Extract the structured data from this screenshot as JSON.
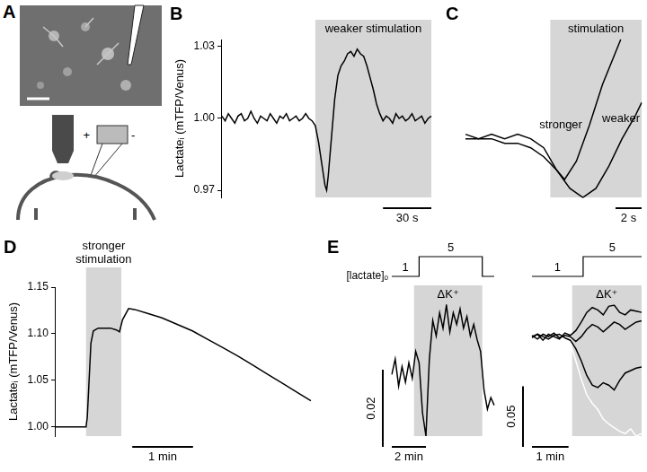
{
  "panel_A": {
    "label": "A",
    "polarity": [
      "+",
      "-"
    ]
  },
  "chart_data": [
    {
      "panel": "B",
      "type": "line",
      "y_label": "Lactateᵢ (mTFP/Venus)",
      "tick_labels": "y",
      "ylim": [
        0.967,
        1.033
      ],
      "yticks": [
        0.97,
        {
          "value": 1,
          "label": "1.00"
        },
        1.03
      ],
      "shade": {
        "label": "weaker stimulation",
        "x": [
          58,
          130
        ]
      },
      "scale_bar": {
        "x": 30,
        "x_label": "30 s"
      },
      "series": [
        {
          "color": "#000000",
          "x": [
            0,
            2,
            4,
            6,
            8,
            10,
            12,
            14,
            16,
            18,
            20,
            22,
            24,
            26,
            28,
            30,
            32,
            34,
            36,
            38,
            40,
            42,
            44,
            46,
            48,
            50,
            52,
            54,
            56,
            58,
            60,
            62,
            64,
            65,
            66,
            68,
            70,
            72,
            74,
            76,
            78,
            80,
            82,
            84,
            86,
            88,
            90,
            92,
            94,
            96,
            98,
            100,
            102,
            104,
            106,
            108,
            110,
            112,
            114,
            116,
            118,
            120,
            122,
            124,
            126,
            128,
            130
          ],
          "values": [
            1.001,
            0.999,
            1.002,
            1.0,
            0.998,
            1.001,
            1.002,
            0.999,
            1.0,
            1.003,
            1.0,
            0.998,
            1.001,
            1.0,
            0.999,
            1.002,
            1.0,
            0.998,
            1.001,
            1.0,
            1.002,
            0.999,
            1.0,
            1.001,
            0.999,
            1.0,
            1.002,
            1.0,
            0.999,
            0.997,
            0.99,
            0.981,
            0.972,
            0.97,
            0.976,
            0.992,
            1.008,
            1.018,
            1.022,
            1.024,
            1.027,
            1.028,
            1.026,
            1.029,
            1.027,
            1.026,
            1.022,
            1.017,
            1.012,
            1.006,
            1.002,
            0.999,
            1.001,
            1.0,
            0.998,
            1.002,
            1.0,
            1.001,
            0.999,
            1.0,
            1.002,
            0.999,
            1.0,
            1.001,
            0.998,
            1.0,
            1.001
          ]
        }
      ]
    },
    {
      "panel": "C",
      "type": "line",
      "tick_labels": false,
      "shade": {
        "label": "stimulation",
        "x": [
          6.5,
          13.5
        ]
      },
      "scale_bar": {
        "x": 2,
        "x_label": "2 s"
      },
      "series": [
        {
          "name": "stronger",
          "color": "#000000",
          "x": [
            0,
            1,
            2,
            3,
            4,
            5,
            6,
            7,
            7.6,
            8.5,
            9.5,
            10.5,
            11.9
          ],
          "values": [
            1.003,
            1.002,
            1.003,
            1.002,
            1.003,
            1.002,
            1.0,
            0.995,
            0.993,
            0.997,
            1.005,
            1.014,
            1.024
          ]
        },
        {
          "name": "weaker",
          "color": "#000000",
          "x": [
            0,
            1,
            2,
            3,
            4,
            5,
            6,
            7,
            8,
            9,
            10,
            11,
            12,
            13,
            13.5
          ],
          "values": [
            1.002,
            1.002,
            1.002,
            1.001,
            1.001,
            1.0,
            0.998,
            0.995,
            0.991,
            0.989,
            0.991,
            0.996,
            1.002,
            1.007,
            1.01
          ]
        }
      ]
    },
    {
      "panel": "D",
      "type": "line",
      "y_label": "Lactateᵢ (mTFP/Venus)",
      "tick_labels": "y",
      "ylim": [
        0.99,
        1.15
      ],
      "yticks": [
        {
          "value": 1,
          "label": "1.00"
        },
        1.05,
        {
          "value": 1.1,
          "label": "1.10"
        },
        1.15
      ],
      "shade": {
        "label": "stronger stimulation",
        "x": [
          0.5,
          1.08
        ]
      },
      "scale_bar": {
        "x": 1,
        "x_label": "1 min"
      },
      "series": [
        {
          "color": "#000000",
          "x": [
            0,
            0.2,
            0.4,
            0.5,
            0.52,
            0.55,
            0.58,
            0.62,
            0.7,
            0.8,
            0.9,
            1.0,
            1.05,
            1.1,
            1.2,
            1.3,
            1.5,
            1.75,
            2.0,
            2.25,
            2.5,
            2.75,
            3.0,
            3.25,
            3.5,
            3.75,
            4.0,
            4.2
          ],
          "values": [
            1.0,
            1.0,
            1.0,
            1.0,
            1.01,
            1.05,
            1.09,
            1.103,
            1.106,
            1.106,
            1.106,
            1.104,
            1.102,
            1.115,
            1.127,
            1.126,
            1.122,
            1.117,
            1.11,
            1.103,
            1.094,
            1.085,
            1.076,
            1.066,
            1.056,
            1.046,
            1.036,
            1.028
          ]
        }
      ]
    },
    {
      "panel": "E",
      "type": "line",
      "tick_labels": false,
      "shade": {
        "label": "ΔK⁺",
        "x": [
          1.3,
          5.3
        ]
      },
      "scale_bar": {
        "x": 2,
        "x_label": "2 min",
        "y": 0.02,
        "y_label": "0.02"
      },
      "lactate_o": {
        "label": "[lactate]ₒ",
        "x": [
          0,
          1.6,
          5.3
        ],
        "levels": [
          1,
          5,
          1
        ]
      },
      "series": [
        {
          "color": "#000000",
          "x": [
            0,
            0.2,
            0.4,
            0.6,
            0.8,
            1.0,
            1.2,
            1.4,
            1.6,
            1.8,
            2.0,
            2.2,
            2.4,
            2.6,
            2.8,
            3.0,
            3.2,
            3.4,
            3.6,
            3.8,
            4.0,
            4.2,
            4.4,
            4.6,
            4.8,
            5.0,
            5.2,
            5.4,
            5.6,
            5.8,
            6.0
          ],
          "values": [
            0,
            0.004,
            -0.003,
            0.002,
            -0.002,
            0.003,
            -0.001,
            0.006,
            0.003,
            -0.01,
            -0.016,
            0.004,
            0.014,
            0.01,
            0.016,
            0.012,
            0.018,
            0.011,
            0.016,
            0.013,
            0.017,
            0.012,
            0.015,
            0.01,
            0.013,
            0.009,
            0.006,
            -0.004,
            -0.009,
            -0.006,
            -0.008
          ]
        }
      ]
    },
    {
      "type": "line",
      "tick_labels": false,
      "shade": {
        "label": "ΔK⁺",
        "x": [
          1.1,
          3.0
        ]
      },
      "scale_bar": {
        "x": 1,
        "x_label": "1 min",
        "y": 0.05,
        "y_label": "0.05"
      },
      "lactate_o": {
        "x": [
          0,
          1.4
        ],
        "levels": [
          1,
          5
        ]
      },
      "series": [
        {
          "color": "#000000",
          "x": [
            0,
            0.15,
            0.3,
            0.45,
            0.6,
            0.75,
            0.9,
            1.05,
            1.2,
            1.35,
            1.5,
            1.65,
            1.8,
            1.95,
            2.1,
            2.25,
            2.4,
            2.55,
            2.7,
            2.85,
            3.0
          ],
          "values": [
            0,
            0.002,
            -0.003,
            0.002,
            0,
            -0.002,
            0.003,
            0.001,
            0.005,
            0.012,
            0.02,
            0.024,
            0.022,
            0.018,
            0.025,
            0.026,
            0.02,
            0.018,
            0.022,
            0.021,
            0.02
          ]
        },
        {
          "color": "#000000",
          "x": [
            0,
            0.15,
            0.3,
            0.45,
            0.6,
            0.75,
            0.9,
            1.05,
            1.2,
            1.35,
            1.5,
            1.65,
            1.8,
            1.95,
            2.1,
            2.25,
            2.4,
            2.55,
            2.7,
            2.85,
            3.0
          ],
          "values": [
            0.001,
            -0.002,
            0.002,
            0,
            0.003,
            -0.001,
            0.001,
            0,
            -0.004,
            0,
            0.006,
            0.01,
            0.008,
            0.004,
            0.008,
            0.012,
            0.01,
            0.006,
            0.009,
            0.012,
            0.013
          ]
        },
        {
          "color": "#000000",
          "x": [
            0,
            0.15,
            0.3,
            0.45,
            0.6,
            0.75,
            0.9,
            1.05,
            1.2,
            1.35,
            1.5,
            1.65,
            1.8,
            1.95,
            2.1,
            2.25,
            2.4,
            2.55,
            2.7,
            2.85,
            3.0
          ],
          "values": [
            -0.001,
            0.002,
            0,
            -0.002,
            0.001,
            0.002,
            -0.001,
            -0.003,
            -0.01,
            -0.02,
            -0.032,
            -0.04,
            -0.042,
            -0.038,
            -0.04,
            -0.044,
            -0.036,
            -0.03,
            -0.028,
            -0.026,
            -0.025
          ]
        },
        {
          "color": "#ffffff",
          "x": [
            0,
            0.15,
            0.3,
            0.45,
            0.6,
            0.75,
            0.9,
            1.05,
            1.2,
            1.35,
            1.5,
            1.65,
            1.8,
            1.95,
            2.1,
            2.25,
            2.4,
            2.55,
            2.7,
            2.85,
            3.0
          ],
          "values": [
            0,
            0.001,
            -0.001,
            0,
            0.001,
            0,
            -0.001,
            -0.005,
            -0.02,
            -0.035,
            -0.048,
            -0.055,
            -0.06,
            -0.068,
            -0.072,
            -0.075,
            -0.078,
            -0.08,
            -0.076,
            -0.082,
            -0.08
          ]
        }
      ]
    }
  ]
}
